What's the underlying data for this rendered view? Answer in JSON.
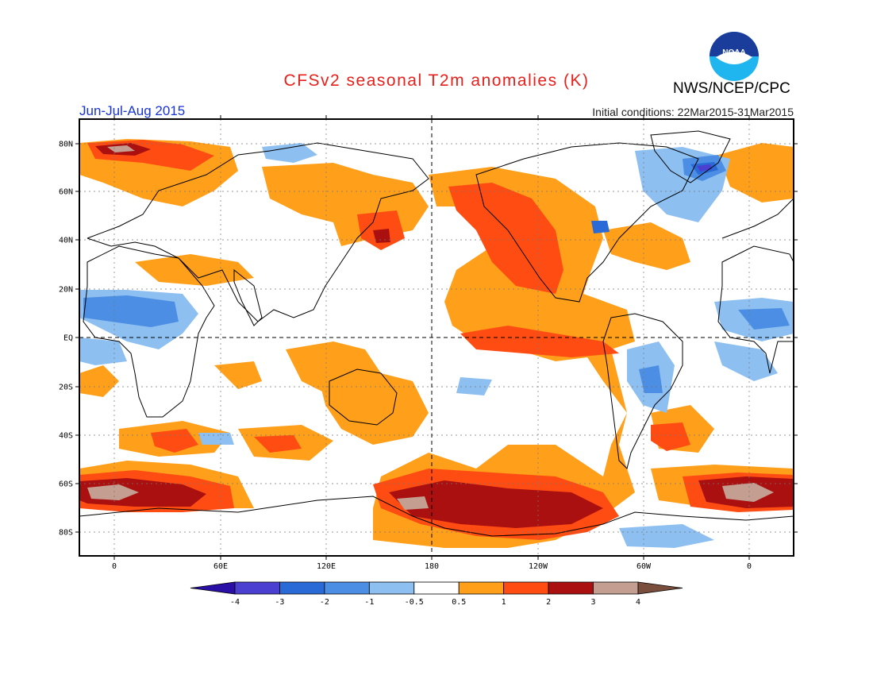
{
  "header": {
    "title": "CFSv2 seasonal T2m anomalies (K)",
    "agency": "NWS/NCEP/CPC",
    "period": "Jun-Jul-Aug 2015",
    "initial_conditions": "Initial conditions: 22Mar2015-31Mar2015",
    "logo_text": "NOAA"
  },
  "map": {
    "lat_labels": [
      "80N",
      "60N",
      "40N",
      "20N",
      "EQ",
      "20S",
      "40S",
      "60S",
      "80S"
    ],
    "lon_labels": [
      "0",
      "60E",
      "120E",
      "180",
      "120W",
      "60W",
      "0"
    ],
    "grid": true
  },
  "colorbar": {
    "ticks": [
      "-4",
      "-3",
      "-2",
      "-1",
      "-0.5",
      "0.5",
      "1",
      "2",
      "3",
      "4"
    ],
    "colors": [
      "#2a0fa6",
      "#4a3fd0",
      "#2a6ad6",
      "#4b8ee3",
      "#8dbff0",
      "#ffffff",
      "#ff9f1a",
      "#ff4c12",
      "#aa1010",
      "#c49e90",
      "#7a4e3d"
    ]
  },
  "colors": {
    "pos1": "#ff9f1a",
    "pos2": "#ff4c12",
    "pos3": "#aa1010",
    "pos4": "#c49e90",
    "neg1": "#8dbff0",
    "neg2": "#4b8ee3",
    "neg3": "#2a6ad6",
    "neg4": "#4a3fd0"
  }
}
